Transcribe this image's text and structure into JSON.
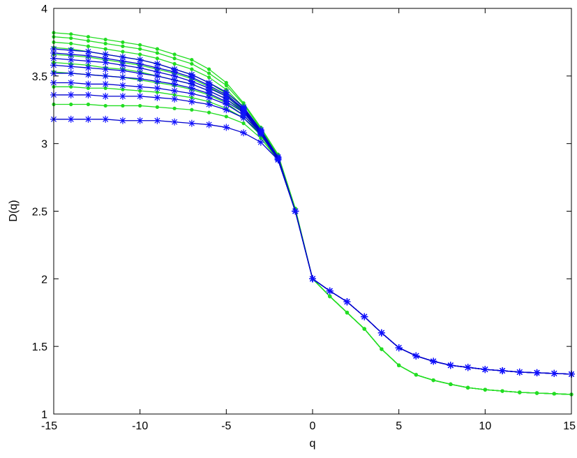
{
  "chart_data": {
    "type": "line",
    "xlabel": "q",
    "ylabel": "D(q)",
    "xlim": [
      -15,
      15
    ],
    "ylim": [
      1,
      4
    ],
    "xticks": [
      -15,
      -10,
      -5,
      0,
      5,
      10,
      15
    ],
    "yticks": [
      1,
      1.5,
      2,
      2.5,
      3,
      3.5,
      4
    ],
    "x": [
      -15,
      -14,
      -13,
      -12,
      -11,
      -10,
      -9,
      -8,
      -7,
      -6,
      -5,
      -4,
      -3,
      -2,
      -1,
      0,
      1,
      2,
      3,
      4,
      5,
      6,
      7,
      8,
      9,
      10,
      11,
      12,
      13,
      14,
      15
    ],
    "grid": false,
    "legend": "none",
    "colors": {
      "green": "#22dd22",
      "blue": "#0000cc",
      "blue_marker": "#1010ff"
    },
    "series": [
      {
        "color": "green",
        "marker": "dot",
        "values": [
          3.82,
          3.81,
          3.79,
          3.77,
          3.75,
          3.73,
          3.7,
          3.66,
          3.62,
          3.55,
          3.45,
          3.3,
          3.12,
          2.92,
          2.52,
          2.0,
          1.87,
          1.75,
          1.63,
          1.48,
          1.36,
          1.29,
          1.25,
          1.22,
          1.195,
          1.18,
          1.17,
          1.16,
          1.155,
          1.15,
          1.145
        ]
      },
      {
        "color": "green",
        "marker": "dot",
        "values": [
          3.79,
          3.78,
          3.76,
          3.74,
          3.72,
          3.7,
          3.67,
          3.63,
          3.59,
          3.52,
          3.43,
          3.29,
          3.11,
          2.91,
          2.52,
          2.0,
          1.87,
          1.75,
          1.63,
          1.48,
          1.36,
          1.29,
          1.25,
          1.22,
          1.195,
          1.18,
          1.17,
          1.16,
          1.155,
          1.15,
          1.145
        ]
      },
      {
        "color": "green",
        "marker": "dot",
        "values": [
          3.75,
          3.74,
          3.72,
          3.7,
          3.68,
          3.66,
          3.63,
          3.59,
          3.55,
          3.49,
          3.4,
          3.27,
          3.1,
          2.9,
          2.51,
          2.0,
          1.87,
          1.75,
          1.63,
          1.48,
          1.36,
          1.29,
          1.25,
          1.22,
          1.195,
          1.18,
          1.17,
          1.16,
          1.155,
          1.15,
          1.145
        ]
      },
      {
        "color": "green",
        "marker": "dot",
        "values": [
          3.71,
          3.7,
          3.68,
          3.66,
          3.64,
          3.62,
          3.59,
          3.55,
          3.51,
          3.45,
          3.37,
          3.25,
          3.09,
          2.89,
          2.51,
          2.0,
          1.87,
          1.75,
          1.63,
          1.48,
          1.36,
          1.29,
          1.25,
          1.22,
          1.195,
          1.18,
          1.17,
          1.16,
          1.155,
          1.15,
          1.145
        ]
      },
      {
        "color": "green",
        "marker": "dot",
        "values": [
          3.66,
          3.65,
          3.64,
          3.62,
          3.6,
          3.58,
          3.55,
          3.52,
          3.48,
          3.42,
          3.35,
          3.24,
          3.08,
          2.89,
          2.5,
          2.0,
          1.87,
          1.75,
          1.63,
          1.48,
          1.36,
          1.29,
          1.25,
          1.22,
          1.195,
          1.18,
          1.17,
          1.16,
          1.155,
          1.15,
          1.145
        ]
      },
      {
        "color": "green",
        "marker": "dot",
        "values": [
          3.6,
          3.59,
          3.58,
          3.56,
          3.55,
          3.53,
          3.5,
          3.47,
          3.44,
          3.39,
          3.33,
          3.23,
          3.08,
          2.88,
          2.5,
          2.0,
          1.87,
          1.75,
          1.63,
          1.48,
          1.36,
          1.29,
          1.25,
          1.22,
          1.195,
          1.18,
          1.17,
          1.16,
          1.155,
          1.15,
          1.145
        ]
      },
      {
        "color": "green",
        "marker": "dot",
        "values": [
          3.53,
          3.52,
          3.51,
          3.5,
          3.49,
          3.47,
          3.45,
          3.43,
          3.4,
          3.36,
          3.3,
          3.21,
          3.07,
          2.88,
          2.5,
          2.0,
          1.87,
          1.75,
          1.63,
          1.48,
          1.36,
          1.29,
          1.25,
          1.22,
          1.195,
          1.18,
          1.17,
          1.16,
          1.155,
          1.15,
          1.145
        ]
      },
      {
        "color": "green",
        "marker": "dot",
        "values": [
          3.42,
          3.42,
          3.41,
          3.41,
          3.4,
          3.39,
          3.38,
          3.36,
          3.34,
          3.31,
          3.26,
          3.19,
          3.06,
          2.88,
          2.5,
          2.0,
          1.87,
          1.75,
          1.63,
          1.48,
          1.36,
          1.29,
          1.25,
          1.22,
          1.195,
          1.18,
          1.17,
          1.16,
          1.155,
          1.15,
          1.145
        ]
      },
      {
        "color": "green",
        "marker": "dot",
        "values": [
          3.29,
          3.29,
          3.29,
          3.28,
          3.28,
          3.28,
          3.27,
          3.26,
          3.25,
          3.23,
          3.2,
          3.15,
          3.04,
          2.88,
          2.5,
          2.0,
          1.87,
          1.75,
          1.63,
          1.48,
          1.36,
          1.29,
          1.25,
          1.22,
          1.195,
          1.18,
          1.17,
          1.16,
          1.155,
          1.15,
          1.145
        ]
      },
      {
        "color": "blue",
        "marker": "star",
        "values": [
          3.7,
          3.69,
          3.68,
          3.66,
          3.64,
          3.62,
          3.59,
          3.55,
          3.51,
          3.45,
          3.38,
          3.27,
          3.1,
          2.9,
          2.5,
          2.0,
          1.91,
          1.83,
          1.72,
          1.6,
          1.49,
          1.43,
          1.39,
          1.36,
          1.345,
          1.33,
          1.32,
          1.31,
          1.305,
          1.3,
          1.295
        ]
      },
      {
        "color": "blue",
        "marker": "star",
        "values": [
          3.67,
          3.66,
          3.65,
          3.63,
          3.61,
          3.59,
          3.56,
          3.53,
          3.49,
          3.43,
          3.36,
          3.26,
          3.1,
          2.9,
          2.5,
          2.0,
          1.91,
          1.83,
          1.72,
          1.6,
          1.49,
          1.43,
          1.39,
          1.36,
          1.345,
          1.33,
          1.32,
          1.31,
          1.305,
          1.3,
          1.295
        ]
      },
      {
        "color": "blue",
        "marker": "star",
        "values": [
          3.63,
          3.62,
          3.61,
          3.6,
          3.58,
          3.56,
          3.53,
          3.5,
          3.46,
          3.41,
          3.35,
          3.25,
          3.09,
          2.89,
          2.5,
          2.0,
          1.91,
          1.83,
          1.72,
          1.6,
          1.49,
          1.43,
          1.39,
          1.36,
          1.345,
          1.33,
          1.32,
          1.31,
          1.305,
          1.3,
          1.295
        ]
      },
      {
        "color": "blue",
        "marker": "star",
        "values": [
          3.58,
          3.57,
          3.56,
          3.55,
          3.54,
          3.52,
          3.5,
          3.47,
          3.44,
          3.39,
          3.33,
          3.24,
          3.09,
          2.89,
          2.5,
          2.0,
          1.91,
          1.83,
          1.72,
          1.6,
          1.49,
          1.43,
          1.39,
          1.36,
          1.345,
          1.33,
          1.32,
          1.31,
          1.305,
          1.3,
          1.295
        ]
      },
      {
        "color": "blue",
        "marker": "star",
        "values": [
          3.52,
          3.52,
          3.51,
          3.5,
          3.49,
          3.48,
          3.46,
          3.44,
          3.41,
          3.37,
          3.31,
          3.23,
          3.08,
          2.89,
          2.5,
          2.0,
          1.91,
          1.83,
          1.72,
          1.6,
          1.49,
          1.43,
          1.39,
          1.36,
          1.345,
          1.33,
          1.32,
          1.31,
          1.305,
          1.3,
          1.295
        ]
      },
      {
        "color": "blue",
        "marker": "star",
        "values": [
          3.45,
          3.45,
          3.44,
          3.44,
          3.43,
          3.42,
          3.41,
          3.39,
          3.37,
          3.34,
          3.29,
          3.21,
          3.08,
          2.88,
          2.5,
          2.0,
          1.91,
          1.83,
          1.72,
          1.6,
          1.49,
          1.43,
          1.39,
          1.36,
          1.345,
          1.33,
          1.32,
          1.31,
          1.305,
          1.3,
          1.295
        ]
      },
      {
        "color": "blue",
        "marker": "star",
        "values": [
          3.36,
          3.36,
          3.36,
          3.35,
          3.35,
          3.35,
          3.34,
          3.33,
          3.31,
          3.29,
          3.25,
          3.19,
          3.07,
          2.88,
          2.5,
          2.0,
          1.91,
          1.83,
          1.72,
          1.6,
          1.49,
          1.43,
          1.39,
          1.36,
          1.345,
          1.33,
          1.32,
          1.31,
          1.305,
          1.3,
          1.295
        ]
      },
      {
        "color": "blue",
        "marker": "star",
        "values": [
          3.18,
          3.18,
          3.18,
          3.18,
          3.17,
          3.17,
          3.17,
          3.16,
          3.15,
          3.14,
          3.12,
          3.08,
          3.01,
          2.88,
          2.5,
          2.0,
          1.91,
          1.83,
          1.72,
          1.6,
          1.49,
          1.43,
          1.39,
          1.36,
          1.345,
          1.33,
          1.32,
          1.31,
          1.305,
          1.3,
          1.295
        ]
      }
    ]
  }
}
